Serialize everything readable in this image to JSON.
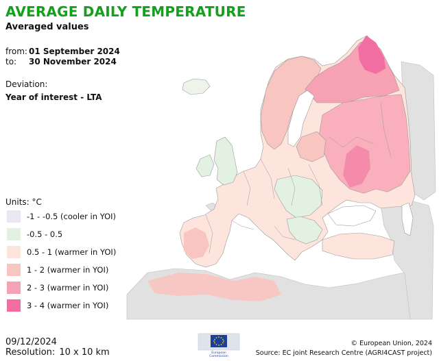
{
  "header": {
    "title": "AVERAGE DAILY TEMPERATURE",
    "subtitle": "Averaged values",
    "from_label": "from:",
    "from_date": "01 September 2024",
    "to_label": "to:",
    "to_date": "30 November 2024",
    "deviation_label": "Deviation:",
    "deviation_value": "Year of interest - LTA"
  },
  "legend": {
    "units": "Units: °C",
    "classes": [
      {
        "label": "-1 - -0.5 (cooler in YOI)",
        "color": "#ebe7f2"
      },
      {
        "label": "-0.5 - 0.5",
        "color": "#e3f1e3"
      },
      {
        "label": "0.5 - 1 (warmer in YOI)",
        "color": "#fde4dc"
      },
      {
        "label": "1 - 2 (warmer in YOI)",
        "color": "#f9c5c0"
      },
      {
        "label": "2 - 3 (warmer in YOI)",
        "color": "#f7a1b5"
      },
      {
        "label": "3 - 4 (warmer in YOI)",
        "color": "#f26da1"
      }
    ]
  },
  "footer": {
    "date": "09/12/2024",
    "resolution_label": "Resolution:",
    "resolution_value": "10 x 10 km",
    "logo_text": "European Commission",
    "copyright": "© European Union, 2024",
    "source": "Source: EC joint Research Centre (AGRI4CAST project)"
  },
  "map": {
    "sea_color": "#ffffff",
    "nodata_color": "#e1e1e1",
    "border_color": "#9a9a9a"
  }
}
